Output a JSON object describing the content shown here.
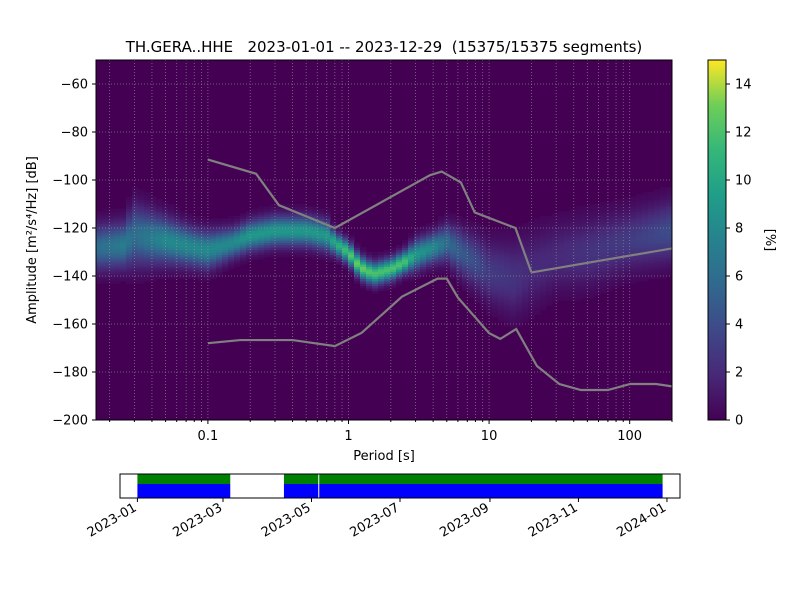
{
  "chart_data": [
    {
      "type": "heatmap",
      "title": "TH.GERA..HHE   2023-01-01 -- 2023-12-29  (15375/15375 segments)",
      "xlabel": "Period [s]",
      "ylabel": "Amplitude [m²/s⁴/Hz] [dB]",
      "xscale": "log",
      "xlim": [
        0.016,
        200
      ],
      "ylim": [
        -200,
        -50
      ],
      "xticks": [
        {
          "value": 0.1,
          "label": "0.1"
        },
        {
          "value": 1,
          "label": "1"
        },
        {
          "value": 10,
          "label": "10"
        },
        {
          "value": 100,
          "label": "100"
        }
      ],
      "yticks": [
        {
          "value": -60,
          "label": "−60"
        },
        {
          "value": -80,
          "label": "−80"
        },
        {
          "value": -100,
          "label": "−100"
        },
        {
          "value": -120,
          "label": "−120"
        },
        {
          "value": -140,
          "label": "−140"
        },
        {
          "value": -160,
          "label": "−160"
        },
        {
          "value": -180,
          "label": "−180"
        },
        {
          "value": -200,
          "label": "−200"
        }
      ],
      "grid": true,
      "colormap": "viridis",
      "colorbar": {
        "label": "[%]",
        "range": [
          0,
          15
        ],
        "ticks": [
          {
            "value": 0,
            "label": "0"
          },
          {
            "value": 2,
            "label": "2"
          },
          {
            "value": 4,
            "label": "4"
          },
          {
            "value": 6,
            "label": "6"
          },
          {
            "value": 8,
            "label": "8"
          },
          {
            "value": 10,
            "label": "10"
          },
          {
            "value": 12,
            "label": "12"
          },
          {
            "value": 14,
            "label": "14"
          }
        ]
      },
      "ppsd_mode": {
        "period": [
          0.016,
          0.025,
          0.03,
          0.05,
          0.08,
          0.1,
          0.15,
          0.2,
          0.3,
          0.4,
          0.5,
          0.6,
          0.7,
          0.8,
          1.0,
          1.2,
          1.5,
          2.0,
          2.5,
          3.0,
          4.0,
          5.0,
          6.0,
          8.0,
          10,
          15,
          20,
          30,
          50,
          100,
          200
        ],
        "amplitude": [
          -128,
          -127,
          -123,
          -125,
          -128,
          -129,
          -126,
          -123,
          -121,
          -121,
          -121,
          -122,
          -123,
          -126,
          -130,
          -136,
          -139,
          -137,
          -134,
          -131,
          -128,
          -126,
          -129,
          -134,
          -138,
          -141,
          -137,
          -132,
          -130,
          -125,
          -121
        ],
        "spread_db": [
          6,
          6,
          8,
          6,
          5,
          5,
          4,
          4,
          4,
          4,
          4,
          4,
          4,
          3,
          3,
          3,
          3,
          3,
          3,
          4,
          4,
          5,
          6,
          7,
          8,
          10,
          10,
          9,
          9,
          8,
          8
        ],
        "peak_percent": [
          6,
          7,
          6,
          8,
          8,
          8,
          8,
          9,
          9,
          9,
          9,
          9,
          9,
          10,
          12,
          13,
          12,
          12,
          12,
          9,
          8,
          6,
          5,
          4,
          3,
          2.5,
          2,
          2,
          2.5,
          3,
          4
        ]
      },
      "noise_models": [
        {
          "name": "NHNM",
          "color": "#808080",
          "period": [
            0.1,
            0.22,
            0.32,
            0.8,
            3.8,
            4.6,
            6.3,
            7.9,
            15.4,
            20
          ],
          "amplitude": [
            -91.5,
            -97.4,
            -110.5,
            -120,
            -98,
            -96.5,
            -101,
            -113.5,
            -120,
            -138.5
          ]
        },
        {
          "name": "NHNM-long",
          "color": "#808080",
          "period": [
            20,
            200
          ],
          "amplitude": [
            -138.5,
            -128.5
          ]
        },
        {
          "name": "NLNM",
          "color": "#808080",
          "period": [
            0.1,
            0.17,
            0.4,
            0.8,
            1.24,
            2.4,
            4.3,
            5.0,
            6.0,
            10.0,
            12.0,
            15.6,
            21.9,
            31.6,
            45.0,
            70.0,
            101.0,
            154.0,
            200.0
          ],
          "amplitude": [
            -168,
            -166.7,
            -166.7,
            -169.2,
            -163.7,
            -148.6,
            -141.1,
            -141.1,
            -149,
            -163.8,
            -166.2,
            -162.1,
            -177.5,
            -185,
            -187.5,
            -187.5,
            -185,
            -185,
            -186
          ]
        }
      ]
    },
    {
      "type": "timeline",
      "xlabel": "",
      "tick_labels": [
        "2023-01",
        "2023-03",
        "2023-05",
        "2023-07",
        "2023-09",
        "2023-11",
        "2024-01"
      ],
      "tick_dates": [
        "2023-01-01",
        "2023-03-01",
        "2023-05-01",
        "2023-07-01",
        "2023-09-01",
        "2023-11-01",
        "2024-01-01"
      ],
      "range": [
        "2022-12-20",
        "2024-01-10"
      ],
      "data_intervals": [
        {
          "start": "2023-01-01",
          "end": "2023-03-06"
        },
        {
          "start": "2023-04-12",
          "end": "2023-12-29"
        }
      ],
      "gaps": [
        "2023-05-06"
      ],
      "colors": {
        "available": "#008000",
        "used": "#0000ff"
      }
    }
  ]
}
